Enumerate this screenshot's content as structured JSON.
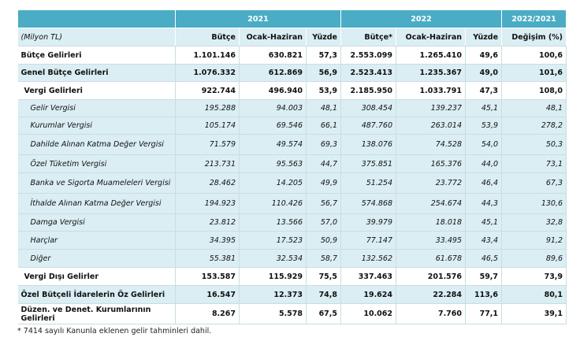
{
  "header": {
    "years": [
      "2021",
      "2022",
      "2022/2021"
    ],
    "columns": [
      "(Milyon TL)",
      "Bütçe",
      "Ocak-Haziran",
      "Yüzde",
      "Bütçe*",
      "Ocak-Haziran",
      "Yüzde",
      "Değişim (%)"
    ]
  },
  "rows": [
    {
      "label": "Bütçe Gelirleri",
      "values": [
        "1.101.146",
        "630.821",
        "57,3",
        "2.553.099",
        "1.265.410",
        "49,6",
        "100,6"
      ]
    },
    {
      "label": "Genel Bütçe Gelirleri",
      "values": [
        "1.076.332",
        "612.869",
        "56,9",
        "2.523.413",
        "1.235.367",
        "49,0",
        "101,6"
      ]
    },
    {
      "label": "Vergi Gelirleri",
      "values": [
        "922.744",
        "496.940",
        "53,9",
        "2.185.950",
        "1.033.791",
        "47,3",
        "108,0"
      ]
    },
    {
      "label": "Gelir Vergisi",
      "values": [
        "195.288",
        "94.003",
        "48,1",
        "308.454",
        "139.237",
        "45,1",
        "48,1"
      ]
    },
    {
      "label": "Kurumlar Vergisi",
      "values": [
        "105.174",
        "69.546",
        "66,1",
        "487.760",
        "263.014",
        "53,9",
        "278,2"
      ]
    },
    {
      "label": "Dahilde Alınan Katma Değer Vergisi",
      "values": [
        "71.579",
        "49.574",
        "69,3",
        "138.076",
        "74.528",
        "54,0",
        "50,3"
      ]
    },
    {
      "label": "Özel Tüketim Vergisi",
      "values": [
        "213.731",
        "95.563",
        "44,7",
        "375.851",
        "165.376",
        "44,0",
        "73,1"
      ]
    },
    {
      "label": "Banka ve Sigorta Muameleleri Vergisi",
      "values": [
        "28.462",
        "14.205",
        "49,9",
        "51.254",
        "23.772",
        "46,4",
        "67,3"
      ]
    },
    {
      "label": "İthalde Alınan Katma Değer Vergisi",
      "values": [
        "194.923",
        "110.426",
        "56,7",
        "574.868",
        "254.674",
        "44,3",
        "130,6"
      ]
    },
    {
      "label": "Damga Vergisi",
      "values": [
        "23.812",
        "13.566",
        "57,0",
        "39.979",
        "18.018",
        "45,1",
        "32,8"
      ]
    },
    {
      "label": "Harçlar",
      "values": [
        "34.395",
        "17.523",
        "50,9",
        "77.147",
        "33.495",
        "43,4",
        "91,2"
      ]
    },
    {
      "label": "Diğer",
      "values": [
        "55.381",
        "32.534",
        "58,7",
        "132.562",
        "61.678",
        "46,5",
        "89,6"
      ]
    },
    {
      "label": "Vergi Dışı Gelirler",
      "values": [
        "153.587",
        "115.929",
        "75,5",
        "337.463",
        "201.576",
        "59,7",
        "73,9"
      ]
    },
    {
      "label": "Özel Bütçeli İdarelerin Öz Gelirleri",
      "values": [
        "16.547",
        "12.373",
        "74,8",
        "19.624",
        "22.284",
        "113,6",
        "80,1"
      ]
    },
    {
      "label": "Düzen. ve Denet. Kurumlarının Gelirleri",
      "values": [
        "8.267",
        "5.578",
        "67,5",
        "10.062",
        "7.760",
        "77,1",
        "39,1"
      ]
    }
  ],
  "footnote": "* 7414 sayılı Kanunla eklenen gelir tahminleri dahil."
}
